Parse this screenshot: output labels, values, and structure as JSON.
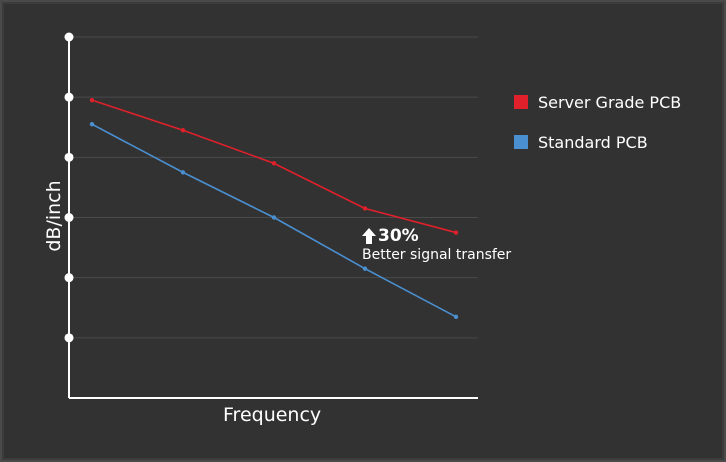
{
  "chart_data": {
    "type": "line",
    "title": "",
    "xlabel": "Frequency",
    "ylabel": "dB/inch",
    "ylim": [
      0,
      6
    ],
    "grid": true,
    "legend_placement": "right",
    "x": [
      1,
      2,
      3,
      4,
      5
    ],
    "series": [
      {
        "name": "Server Grade PCB",
        "color": "#e0202a",
        "values": [
          4.95,
          4.45,
          3.9,
          3.15,
          2.75
        ]
      },
      {
        "name": "Standard PCB",
        "color": "#4a8fd0",
        "values": [
          4.55,
          3.75,
          3.0,
          2.15,
          1.35
        ]
      }
    ],
    "annotation": {
      "big_text": "30%",
      "small_text": "Better signal transfer",
      "icon": "arrow-up-icon"
    }
  },
  "colors": {
    "background": "#323232",
    "axis": "#ffffff",
    "grid": "#4a4a4a",
    "text": "#ffffff"
  }
}
